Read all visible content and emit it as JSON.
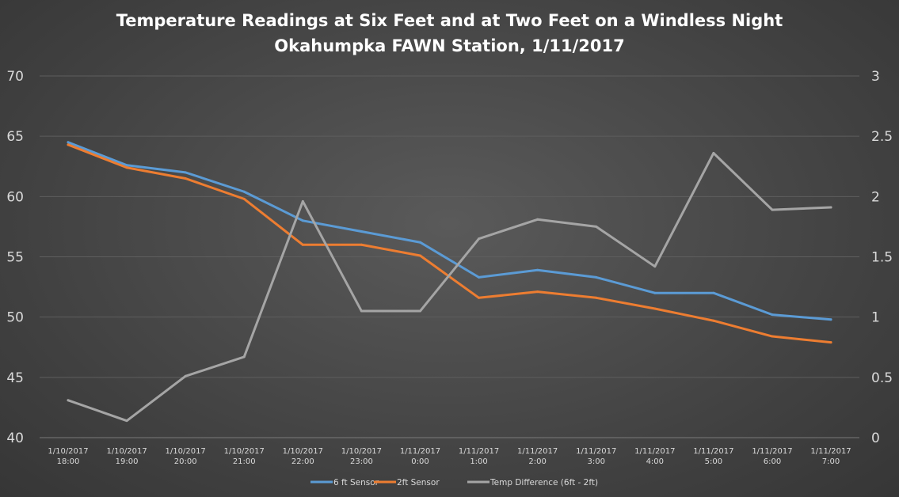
{
  "chart_data": {
    "type": "line",
    "title": "Temperature Readings at Six Feet and at Two Feet on a Windless Night",
    "subtitle": "Okahumpka FAWN Station, 1/11/2017",
    "categories": [
      [
        "1/10/2017",
        "18:00"
      ],
      [
        "1/10/2017",
        "19:00"
      ],
      [
        "1/10/2017",
        "20:00"
      ],
      [
        "1/10/2017",
        "21:00"
      ],
      [
        "1/10/2017",
        "22:00"
      ],
      [
        "1/10/2017",
        "23:00"
      ],
      [
        "1/11/2017",
        "0:00"
      ],
      [
        "1/11/2017",
        "1:00"
      ],
      [
        "1/11/2017",
        "2:00"
      ],
      [
        "1/11/2017",
        "3:00"
      ],
      [
        "1/11/2017",
        "4:00"
      ],
      [
        "1/11/2017",
        "5:00"
      ],
      [
        "1/11/2017",
        "6:00"
      ],
      [
        "1/11/2017",
        "7:00"
      ]
    ],
    "y_left": {
      "ylim": [
        40,
        70
      ],
      "ticks": [
        "40",
        "45",
        "50",
        "55",
        "60",
        "65",
        "70"
      ]
    },
    "y_right": {
      "ylim": [
        0,
        3
      ],
      "ticks": [
        "0",
        "0.5",
        "1",
        "1.5",
        "2",
        "2.5",
        "3"
      ]
    },
    "grid": true,
    "legend_position": "bottom",
    "series": [
      {
        "name": "6 ft Sensor",
        "axis": "left",
        "color": "#5b9bd5",
        "values": [
          64.5,
          62.6,
          62.0,
          60.4,
          58.0,
          57.1,
          56.2,
          53.3,
          53.9,
          53.3,
          52.0,
          52.0,
          50.2,
          49.8
        ]
      },
      {
        "name": "2ft Sensor",
        "axis": "left",
        "color": "#ed7d31",
        "values": [
          64.3,
          62.4,
          61.5,
          59.8,
          56.0,
          56.0,
          55.1,
          51.6,
          52.1,
          51.6,
          50.7,
          49.7,
          48.4,
          47.9
        ]
      },
      {
        "name": "Temp Difference (6ft - 2ft)",
        "axis": "right",
        "color": "#a5a5a5",
        "values": [
          0.31,
          0.14,
          0.51,
          0.67,
          1.96,
          1.05,
          1.05,
          1.65,
          1.81,
          1.75,
          1.42,
          2.36,
          1.89,
          1.91
        ]
      }
    ]
  }
}
